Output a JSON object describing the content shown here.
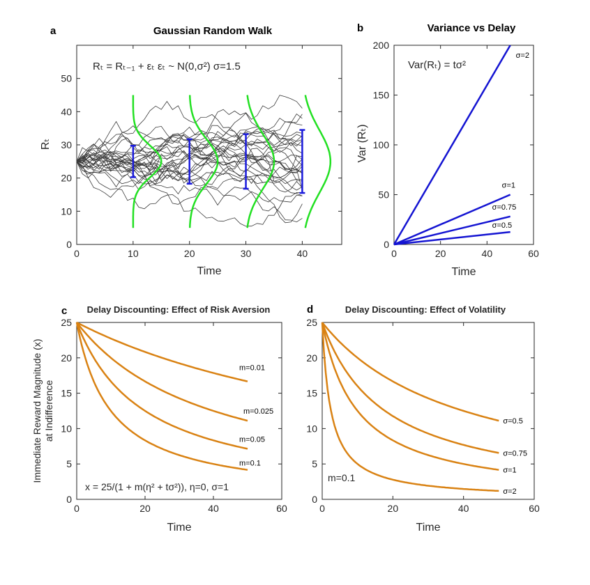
{
  "figure": {
    "panels": {
      "a": {
        "label": "a",
        "title": "Gaussian Random Walk",
        "equation": "Rₜ = Rₜ₋₁ + εₜ   εₜ ~ N(0,σ²)  σ=1.5"
      },
      "b": {
        "label": "b",
        "title": "Variance vs Delay",
        "equation": "Var(Rₜ) = tσ²"
      },
      "c": {
        "label": "c",
        "title": "Delay Discounting: Effect of Risk Aversion",
        "equation": "x = 25/(1 + m(η² + tσ²)),  η=0,  σ=1"
      },
      "d": {
        "label": "d",
        "title": "Delay Discounting: Effect of Volatility",
        "annotation": "m=0.1"
      }
    }
  },
  "chart_data": [
    {
      "id": "a",
      "type": "line",
      "title": "Gaussian Random Walk",
      "xlabel": "Time",
      "ylabel": "Rₜ",
      "xlim": [
        0,
        47
      ],
      "ylim": [
        0,
        60
      ],
      "xticks": [
        0,
        10,
        20,
        30,
        40
      ],
      "yticks": [
        0,
        10,
        20,
        30,
        40,
        50
      ],
      "start": 25,
      "sigma": 1.5,
      "n_paths": 30,
      "t_max": 40,
      "error_bars": [
        {
          "t": 10,
          "mean": 25,
          "sd": 4.74
        },
        {
          "t": 20,
          "mean": 25,
          "sd": 6.71
        },
        {
          "t": 30,
          "mean": 25,
          "sd": 8.22
        },
        {
          "t": 40,
          "mean": 25,
          "sd": 9.49
        }
      ],
      "density_range": [
        5,
        45
      ],
      "density_width": 5,
      "colors": {
        "paths": "#3a3a3a",
        "error_bars": "#1a1adc",
        "density": "#22e022"
      }
    },
    {
      "id": "b",
      "type": "line",
      "title": "Variance vs Delay",
      "xlabel": "Time",
      "ylabel": "Var (Rₜ)",
      "xlim": [
        0,
        60
      ],
      "ylim": [
        0,
        200
      ],
      "xticks": [
        0,
        20,
        40,
        60
      ],
      "yticks": [
        0,
        50,
        100,
        150,
        200
      ],
      "t_max": 50,
      "series": [
        {
          "name": "σ=2",
          "sigma": 2,
          "values": [
            [
              0,
              0
            ],
            [
              50,
              200
            ]
          ]
        },
        {
          "name": "σ=1",
          "sigma": 1,
          "values": [
            [
              0,
              0
            ],
            [
              50,
              50
            ]
          ]
        },
        {
          "name": "σ=0.75",
          "sigma": 0.75,
          "values": [
            [
              0,
              0
            ],
            [
              50,
              28.1
            ]
          ]
        },
        {
          "name": "σ=0.5",
          "sigma": 0.5,
          "values": [
            [
              0,
              0
            ],
            [
              50,
              12.5
            ]
          ]
        }
      ],
      "colors": {
        "lines": "#1414d2"
      }
    },
    {
      "id": "c",
      "type": "line",
      "title": "Delay Discounting: Effect of Risk Aversion",
      "xlabel": "Time",
      "ylabel": "Immediate Reward Magnitude (x)",
      "ylabel2": "at Indifference",
      "xlim": [
        0,
        60
      ],
      "ylim": [
        0,
        25
      ],
      "xticks": [
        0,
        20,
        40,
        60
      ],
      "yticks": [
        0,
        5,
        10,
        15,
        20,
        25
      ],
      "t_max": 50,
      "series": [
        {
          "name": "m=0.01",
          "m": 0.01,
          "sigma": 1
        },
        {
          "name": "m=0.025",
          "m": 0.025,
          "sigma": 1
        },
        {
          "name": "m=0.05",
          "m": 0.05,
          "sigma": 1
        },
        {
          "name": "m=0.1",
          "m": 0.1,
          "sigma": 1
        }
      ],
      "colors": {
        "lines": "#d98213"
      }
    },
    {
      "id": "d",
      "type": "line",
      "title": "Delay Discounting: Effect of Volatility",
      "xlabel": "Time",
      "ylabel": "",
      "xlim": [
        0,
        60
      ],
      "ylim": [
        0,
        25
      ],
      "xticks": [
        0,
        20,
        40,
        60
      ],
      "yticks": [
        0,
        5,
        10,
        15,
        20,
        25
      ],
      "t_max": 50,
      "series": [
        {
          "name": "σ=0.5",
          "m": 0.1,
          "sigma": 0.5
        },
        {
          "name": "σ=0.75",
          "m": 0.1,
          "sigma": 0.75
        },
        {
          "name": "σ=1",
          "m": 0.1,
          "sigma": 1
        },
        {
          "name": "σ=2",
          "m": 0.1,
          "sigma": 2
        }
      ],
      "colors": {
        "lines": "#d98213"
      }
    }
  ]
}
